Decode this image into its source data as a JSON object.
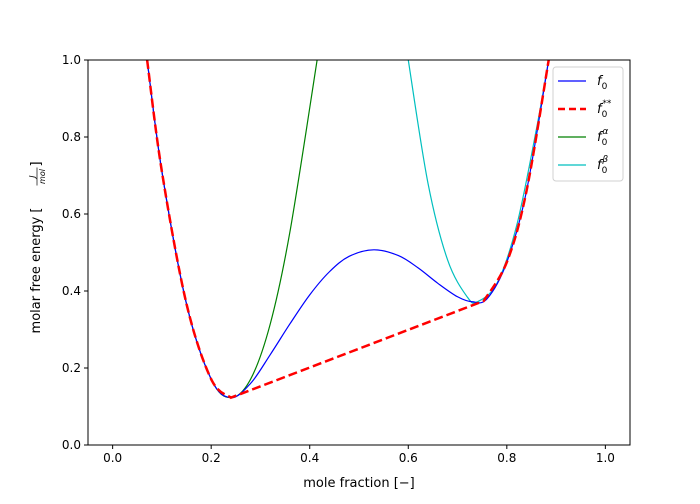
{
  "chart_data": {
    "type": "line",
    "title": "",
    "xlabel": "mole fraction [−]",
    "ylabel": {
      "text": "molar free energy [",
      "frac_num": "J",
      "frac_den": "mol",
      "close": "]"
    },
    "xlim": [
      -0.05,
      1.05
    ],
    "ylim": [
      0.0,
      1.0
    ],
    "xticks": [
      "0.0",
      "0.2",
      "0.4",
      "0.6",
      "0.8",
      "1.0"
    ],
    "yticks": [
      "0.0",
      "0.2",
      "0.4",
      "0.6",
      "0.8",
      "1.0"
    ],
    "grid": false,
    "legend_position": "top-right",
    "series": [
      {
        "name": "f_0",
        "base": "f",
        "sub": "0",
        "sup": "",
        "color": "#0000ff",
        "dash": false,
        "x": [
          0.07,
          0.1,
          0.15,
          0.2,
          0.24,
          0.28,
          0.32,
          0.36,
          0.4,
          0.44,
          0.48,
          0.53,
          0.58,
          0.62,
          0.66,
          0.7,
          0.73,
          0.76,
          0.8,
          0.84,
          0.885
        ],
        "y": [
          1.0,
          0.71,
          0.366,
          0.171,
          0.123,
          0.16,
          0.235,
          0.315,
          0.39,
          0.45,
          0.49,
          0.507,
          0.492,
          0.46,
          0.42,
          0.385,
          0.372,
          0.38,
          0.475,
          0.66,
          1.0
        ]
      },
      {
        "name": "f_0^**",
        "base": "f",
        "sub": "0",
        "sup": "**",
        "color": "#ff0000",
        "dash": true,
        "x": [
          0.07,
          0.1,
          0.15,
          0.2,
          0.24,
          0.753,
          0.8,
          0.84,
          0.885
        ],
        "y": [
          1.0,
          0.71,
          0.366,
          0.171,
          0.123,
          0.374,
          0.475,
          0.66,
          1.0
        ]
      },
      {
        "name": "f_0^alpha",
        "base": "f",
        "sub": "0",
        "sup": "α",
        "color": "#008000",
        "dash": false,
        "x": [
          0.07,
          0.1,
          0.15,
          0.2,
          0.24,
          0.28,
          0.32,
          0.36,
          0.415
        ],
        "y": [
          1.0,
          0.71,
          0.366,
          0.171,
          0.123,
          0.171,
          0.315,
          0.555,
          1.0
        ]
      },
      {
        "name": "f_0^beta",
        "base": "f",
        "sub": "0",
        "sup": "β",
        "color": "#00bfbf",
        "dash": false,
        "x": [
          0.6,
          0.64,
          0.68,
          0.72,
          0.74,
          0.78,
          0.82,
          0.86,
          0.885
        ],
        "y": [
          1.0,
          0.68,
          0.48,
          0.384,
          0.372,
          0.42,
          0.57,
          0.82,
          1.0
        ]
      }
    ]
  }
}
